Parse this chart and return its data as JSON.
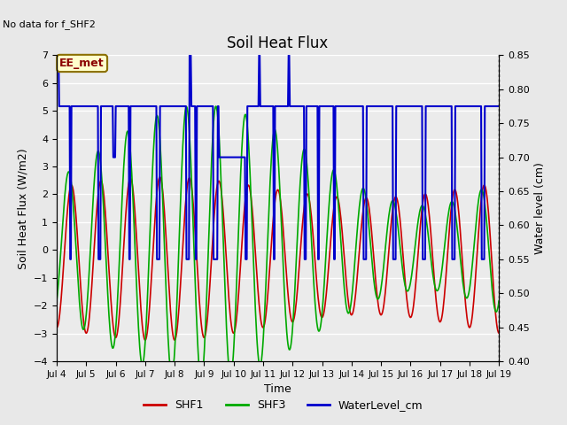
{
  "title": "Soil Heat Flux",
  "no_data_text": "No data for f_SHF2",
  "station_label": "EE_met",
  "ylabel_left": "Soil Heat Flux (W/m2)",
  "ylabel_right": "Water level (cm)",
  "xlabel": "Time",
  "ylim_left": [
    -4.0,
    7.0
  ],
  "ylim_right": [
    0.4,
    0.85
  ],
  "x_tick_labels": [
    "Jul 4",
    "Jul 5",
    "Jul 6",
    "Jul 7",
    "Jul 8",
    "Jul 9",
    "Jul 10",
    "Jul 11",
    "Jul 12",
    "Jul 13",
    "Jul 14",
    "Jul 15",
    "Jul 16",
    "Jul 17",
    "Jul 18",
    "Jul 19"
  ],
  "x_tick_positions": [
    4,
    5,
    6,
    7,
    8,
    9,
    10,
    11,
    12,
    13,
    14,
    15,
    16,
    17,
    18,
    19
  ],
  "background_color": "#e8e8e8",
  "plot_bg_color": "#ebebeb",
  "grid_color": "#ffffff",
  "shf1_color": "#cc0000",
  "shf3_color": "#00aa00",
  "water_color": "#0000cc",
  "legend_items": [
    "SHF1",
    "SHF3",
    "WaterLevel_cm"
  ],
  "water_steps": [
    [
      4.0,
      0.85
    ],
    [
      4.08,
      0.775
    ],
    [
      4.45,
      0.55
    ],
    [
      4.5,
      0.775
    ],
    [
      5.4,
      0.55
    ],
    [
      5.5,
      0.775
    ],
    [
      5.9,
      0.7
    ],
    [
      6.0,
      0.775
    ],
    [
      6.45,
      0.55
    ],
    [
      6.5,
      0.775
    ],
    [
      7.4,
      0.55
    ],
    [
      7.5,
      0.775
    ],
    [
      8.4,
      0.55
    ],
    [
      8.5,
      0.85
    ],
    [
      8.55,
      0.775
    ],
    [
      8.7,
      0.55
    ],
    [
      8.75,
      0.775
    ],
    [
      9.3,
      0.55
    ],
    [
      9.45,
      0.775
    ],
    [
      9.5,
      0.7
    ],
    [
      10.4,
      0.55
    ],
    [
      10.45,
      0.775
    ],
    [
      10.85,
      0.85
    ],
    [
      10.9,
      0.775
    ],
    [
      11.35,
      0.55
    ],
    [
      11.4,
      0.775
    ],
    [
      11.85,
      0.85
    ],
    [
      11.9,
      0.775
    ],
    [
      12.4,
      0.55
    ],
    [
      12.45,
      0.775
    ],
    [
      12.85,
      0.55
    ],
    [
      12.9,
      0.775
    ],
    [
      13.4,
      0.55
    ],
    [
      13.45,
      0.775
    ],
    [
      14.4,
      0.55
    ],
    [
      14.5,
      0.775
    ],
    [
      15.4,
      0.55
    ],
    [
      15.5,
      0.775
    ],
    [
      16.4,
      0.55
    ],
    [
      16.5,
      0.775
    ],
    [
      17.4,
      0.55
    ],
    [
      17.5,
      0.775
    ],
    [
      18.4,
      0.55
    ],
    [
      18.5,
      0.775
    ],
    [
      19.0,
      0.775
    ]
  ]
}
